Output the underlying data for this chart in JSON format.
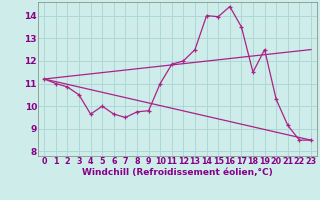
{
  "xlabel": "Windchill (Refroidissement éolien,°C)",
  "bg_color": "#ceecea",
  "grid_color": "#aed8d5",
  "line_color": "#aa2288",
  "x_ticks": [
    0,
    1,
    2,
    3,
    4,
    5,
    6,
    7,
    8,
    9,
    10,
    11,
    12,
    13,
    14,
    15,
    16,
    17,
    18,
    19,
    20,
    21,
    22,
    23
  ],
  "y_ticks": [
    8,
    9,
    10,
    11,
    12,
    13,
    14
  ],
  "ylim": [
    7.8,
    14.6
  ],
  "xlim": [
    -0.5,
    23.5
  ],
  "series1_x": [
    0,
    1,
    2,
    3,
    4,
    5,
    6,
    7,
    8,
    9,
    10,
    11,
    12,
    13,
    14,
    15,
    16,
    17,
    18,
    19,
    20,
    21,
    22,
    23
  ],
  "series1_y": [
    11.2,
    11.0,
    10.85,
    10.5,
    9.65,
    10.0,
    9.65,
    9.5,
    9.75,
    9.8,
    11.0,
    11.85,
    12.0,
    12.5,
    14.0,
    13.95,
    14.4,
    13.5,
    11.5,
    12.5,
    10.3,
    9.15,
    8.5,
    8.5
  ],
  "series2_x": [
    0,
    23
  ],
  "series2_y": [
    11.2,
    8.5
  ],
  "series3_x": [
    0,
    23
  ],
  "series3_y": [
    11.2,
    12.5
  ],
  "tick_color": "#880088",
  "label_fontsize": 6.0,
  "xlabel_fontsize": 6.5,
  "ytick_fontsize": 6.5,
  "xtick_fontsize": 5.8
}
